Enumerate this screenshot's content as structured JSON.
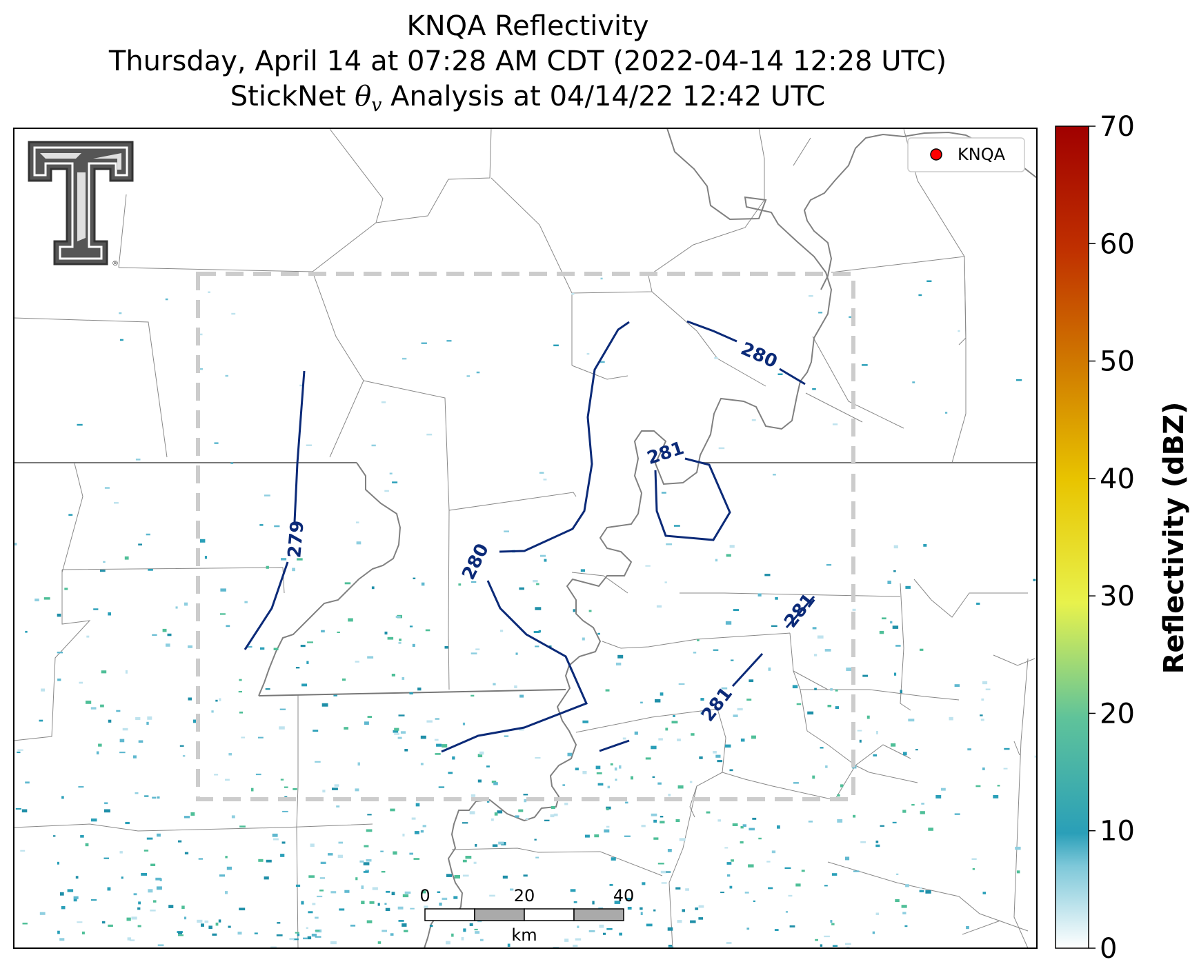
{
  "title": {
    "line1": "KNQA Reflectivity",
    "line2": "Thursday, April 14 at 07:28 AM CDT (2022-04-14 12:28 UTC)",
    "line3_prefix": "StickNet ",
    "line3_theta": "θ",
    "line3_sub": "v",
    "line3_suffix": " Analysis at 04/14/22 12:42 UTC"
  },
  "legend": {
    "label": "KNQA",
    "marker_color": "#ff0000"
  },
  "contours": {
    "color": "#0b2a78",
    "labels": [
      "279",
      "280",
      "280",
      "281",
      "281",
      "281"
    ]
  },
  "colorbar": {
    "label": "Reflectivity (dBZ)",
    "min": 0,
    "max": 70,
    "ticks": [
      "0",
      "10",
      "20",
      "30",
      "40",
      "50",
      "60",
      "70"
    ],
    "stops": [
      "#ffffff",
      "#2a9fb8",
      "#5fc39a",
      "#a8e36c",
      "#e8f24c",
      "#e8c400",
      "#d07a00",
      "#c03000",
      "#a00000"
    ]
  },
  "scale_bar": {
    "ticks": [
      "0",
      "20",
      "40"
    ],
    "unit": "km"
  },
  "colors": {
    "county": "#888888",
    "state": "#777777",
    "river": "#808080",
    "box": "#cccccc",
    "radar_echo": "#2a9fb8"
  },
  "logo": {
    "name": "Texas Tech Double T",
    "mark": "®"
  }
}
